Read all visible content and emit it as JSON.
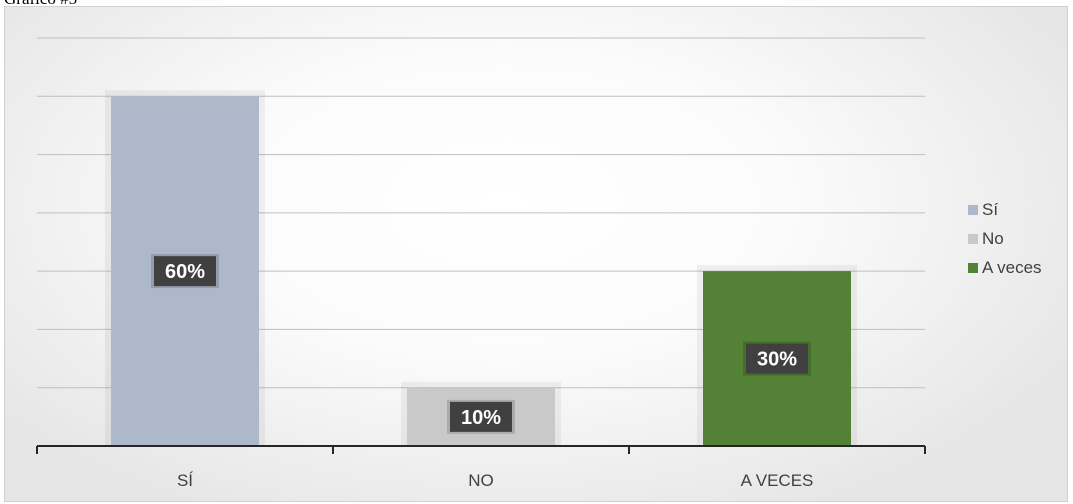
{
  "caption": "Gráfico #5",
  "colors": {
    "gridline": "#bfbfbf",
    "axis": "#262626",
    "label_bg": "#404040",
    "label_text": "#ffffff"
  },
  "chart_data": {
    "type": "bar",
    "title": "",
    "xlabel": "",
    "ylabel": "",
    "categories": [
      "SÍ",
      "NO",
      "A VECES"
    ],
    "values": [
      60,
      10,
      30
    ],
    "value_unit": "%",
    "data_labels": [
      "60%",
      "10%",
      "30%"
    ],
    "colors": [
      "#adb9ca",
      "#c9c9c9",
      "#538135"
    ],
    "ylim": [
      0,
      70
    ],
    "ytick_step": 10,
    "grid": true,
    "legend_position": "right",
    "legend": [
      {
        "label": "Sí",
        "color": "#adb9ca"
      },
      {
        "label": "No",
        "color": "#c9c9c9"
      },
      {
        "label": "A veces",
        "color": "#538135"
      }
    ]
  }
}
